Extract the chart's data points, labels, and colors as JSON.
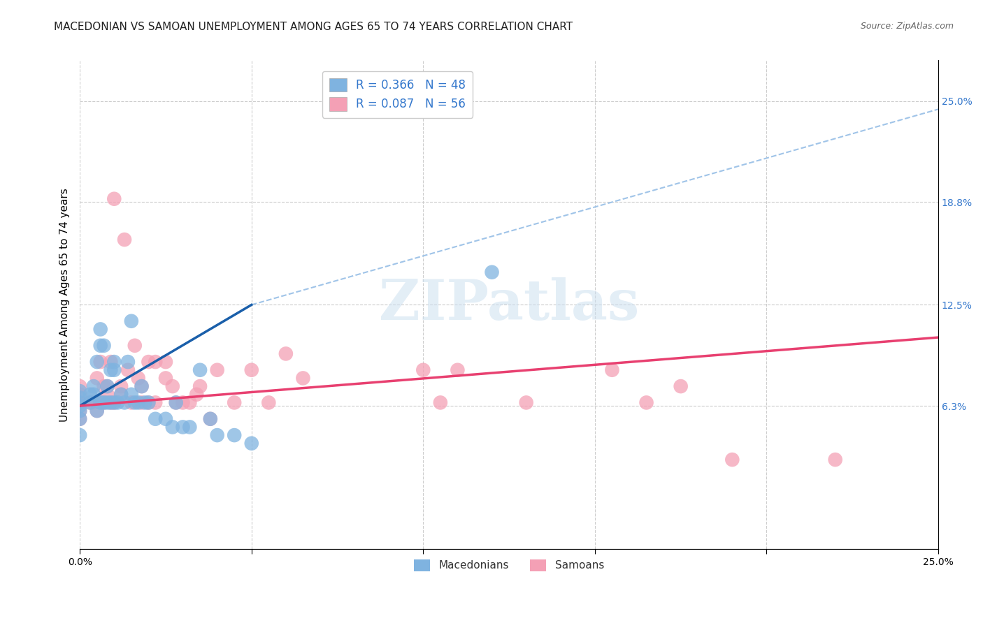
{
  "title": "MACEDONIAN VS SAMOAN UNEMPLOYMENT AMONG AGES 65 TO 74 YEARS CORRELATION CHART",
  "source": "Source: ZipAtlas.com",
  "ylabel": "Unemployment Among Ages 65 to 74 years",
  "xlim": [
    0.0,
    0.25
  ],
  "ylim": [
    -0.025,
    0.275
  ],
  "ytick_right_labels": [
    "6.3%",
    "12.5%",
    "18.8%",
    "25.0%"
  ],
  "ytick_right_positions": [
    0.063,
    0.125,
    0.188,
    0.25
  ],
  "grid_x_positions": [
    0.0,
    0.05,
    0.1,
    0.15,
    0.2,
    0.25
  ],
  "macedonian_color": "#7fb3e0",
  "samoan_color": "#f4a0b5",
  "macedonian_line_color": "#1a5faa",
  "samoan_line_color": "#e84070",
  "dashed_line_color": "#a0c4e8",
  "macedonian_x": [
    0.0,
    0.0,
    0.0,
    0.0,
    0.0,
    0.0,
    0.0,
    0.003,
    0.003,
    0.004,
    0.004,
    0.005,
    0.005,
    0.006,
    0.006,
    0.006,
    0.007,
    0.007,
    0.008,
    0.008,
    0.009,
    0.009,
    0.01,
    0.01,
    0.01,
    0.011,
    0.012,
    0.013,
    0.014,
    0.015,
    0.015,
    0.016,
    0.017,
    0.018,
    0.019,
    0.02,
    0.022,
    0.025,
    0.027,
    0.028,
    0.03,
    0.032,
    0.035,
    0.038,
    0.04,
    0.045,
    0.05,
    0.12
  ],
  "macedonian_y": [
    0.055,
    0.06,
    0.063,
    0.065,
    0.068,
    0.072,
    0.045,
    0.065,
    0.07,
    0.07,
    0.075,
    0.06,
    0.09,
    0.065,
    0.1,
    0.11,
    0.065,
    0.1,
    0.065,
    0.075,
    0.065,
    0.085,
    0.065,
    0.085,
    0.09,
    0.065,
    0.07,
    0.065,
    0.09,
    0.115,
    0.07,
    0.065,
    0.065,
    0.075,
    0.065,
    0.065,
    0.055,
    0.055,
    0.05,
    0.065,
    0.05,
    0.05,
    0.085,
    0.055,
    0.045,
    0.045,
    0.04,
    0.145
  ],
  "samoan_x": [
    0.0,
    0.0,
    0.0,
    0.0,
    0.0,
    0.003,
    0.004,
    0.005,
    0.005,
    0.006,
    0.006,
    0.007,
    0.007,
    0.008,
    0.008,
    0.009,
    0.009,
    0.01,
    0.01,
    0.012,
    0.012,
    0.013,
    0.014,
    0.015,
    0.016,
    0.017,
    0.018,
    0.018,
    0.02,
    0.02,
    0.022,
    0.022,
    0.025,
    0.025,
    0.027,
    0.028,
    0.03,
    0.032,
    0.034,
    0.035,
    0.038,
    0.04,
    0.045,
    0.05,
    0.055,
    0.06,
    0.065,
    0.1,
    0.105,
    0.11,
    0.13,
    0.155,
    0.165,
    0.175,
    0.19,
    0.22
  ],
  "samoan_y": [
    0.055,
    0.06,
    0.065,
    0.07,
    0.075,
    0.065,
    0.065,
    0.06,
    0.08,
    0.065,
    0.09,
    0.065,
    0.075,
    0.07,
    0.075,
    0.065,
    0.09,
    0.065,
    0.19,
    0.07,
    0.075,
    0.165,
    0.085,
    0.065,
    0.1,
    0.08,
    0.075,
    0.065,
    0.09,
    0.065,
    0.065,
    0.09,
    0.08,
    0.09,
    0.075,
    0.065,
    0.065,
    0.065,
    0.07,
    0.075,
    0.055,
    0.085,
    0.065,
    0.085,
    0.065,
    0.095,
    0.08,
    0.085,
    0.065,
    0.085,
    0.065,
    0.085,
    0.065,
    0.075,
    0.03,
    0.03
  ],
  "macedonian_line_x": [
    0.0,
    0.05
  ],
  "macedonian_line_y": [
    0.063,
    0.125
  ],
  "samoan_line_x": [
    0.0,
    0.25
  ],
  "samoan_line_y": [
    0.063,
    0.105
  ],
  "dashed_line_x": [
    0.05,
    0.25
  ],
  "dashed_line_y": [
    0.125,
    0.245
  ],
  "watermark": "ZIPatlas",
  "background_color": "#ffffff",
  "grid_color": "#cccccc",
  "title_fontsize": 11,
  "source_fontsize": 9,
  "axis_fontsize": 11,
  "tick_fontsize": 10,
  "legend_fontsize": 12
}
